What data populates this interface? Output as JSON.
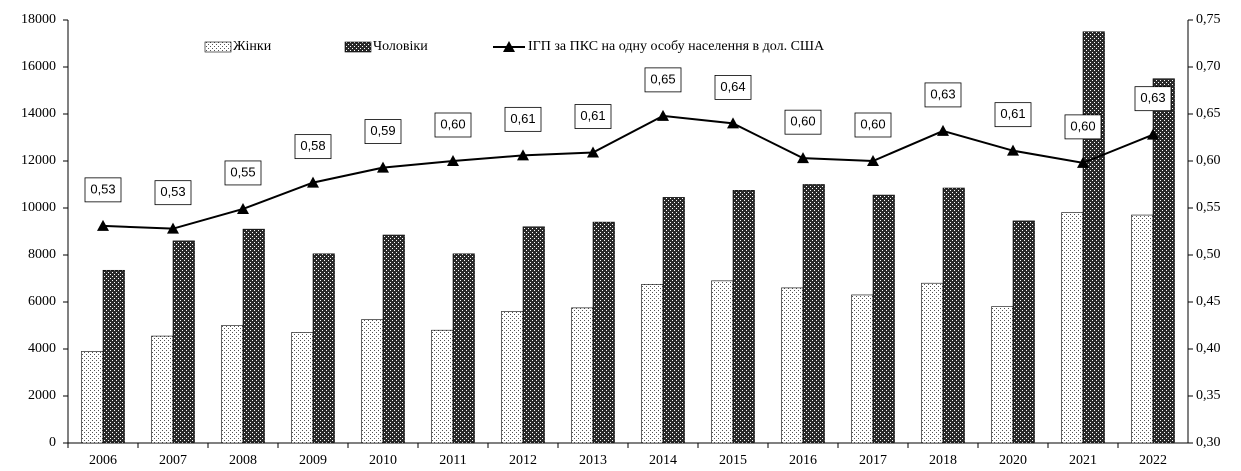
{
  "chart_data": {
    "type": "bar_line",
    "categories": [
      "2006",
      "2007",
      "2008",
      "2009",
      "2010",
      "2011",
      "2012",
      "2013",
      "2014",
      "2015",
      "2016",
      "2017",
      "2018",
      "2020",
      "2021",
      "2022"
    ],
    "series": [
      {
        "name": "Жінки",
        "type": "bar",
        "color": "#ffffff",
        "pattern": "dots",
        "values": [
          3900,
          4550,
          5000,
          4700,
          5250,
          4800,
          5600,
          5750,
          6750,
          6900,
          6600,
          6300,
          6800,
          5800,
          9800,
          9700
        ]
      },
      {
        "name": "Чоловіки",
        "type": "bar",
        "color": "#2a2a2a",
        "pattern": "crosshatch",
        "values": [
          7350,
          8600,
          9100,
          8050,
          8850,
          8050,
          9200,
          9400,
          10450,
          10750,
          11000,
          10550,
          10850,
          9450,
          17500,
          15500
        ]
      },
      {
        "name": "ІГП за ПКС на одну особу населення в дол. США",
        "type": "line",
        "axis": "y2",
        "color": "#000000",
        "marker": "triangle",
        "values": [
          0.531,
          0.528,
          0.549,
          0.577,
          0.593,
          0.6,
          0.606,
          0.609,
          0.648,
          0.64,
          0.603,
          0.6,
          0.632,
          0.611,
          0.598,
          0.628
        ],
        "value_labels": [
          "0,53",
          "0,53",
          "0,55",
          "0,58",
          "0,59",
          "0,60",
          "0,61",
          "0,61",
          "0,65",
          "0,64",
          "0,60",
          "0,60",
          "0,63",
          "0,61",
          "0,60",
          "0,63"
        ]
      }
    ],
    "ylim": [
      0,
      18000
    ],
    "yticks": [
      0,
      2000,
      4000,
      6000,
      8000,
      10000,
      12000,
      14000,
      16000,
      18000
    ],
    "y2lim": [
      0.3,
      0.75
    ],
    "y2ticks": [
      {
        "value": 0.3,
        "label": "0,30"
      },
      {
        "value": 0.35,
        "label": "0,35"
      },
      {
        "value": 0.4,
        "label": "0,40"
      },
      {
        "value": 0.45,
        "label": "0,45"
      },
      {
        "value": 0.5,
        "label": "0,50"
      },
      {
        "value": 0.55,
        "label": "0,55"
      },
      {
        "value": 0.6,
        "label": "0,60"
      },
      {
        "value": 0.65,
        "label": "0,65"
      },
      {
        "value": 0.7,
        "label": "0,70"
      },
      {
        "value": 0.75,
        "label": "0,75"
      }
    ],
    "legend": "top",
    "grid": false
  }
}
